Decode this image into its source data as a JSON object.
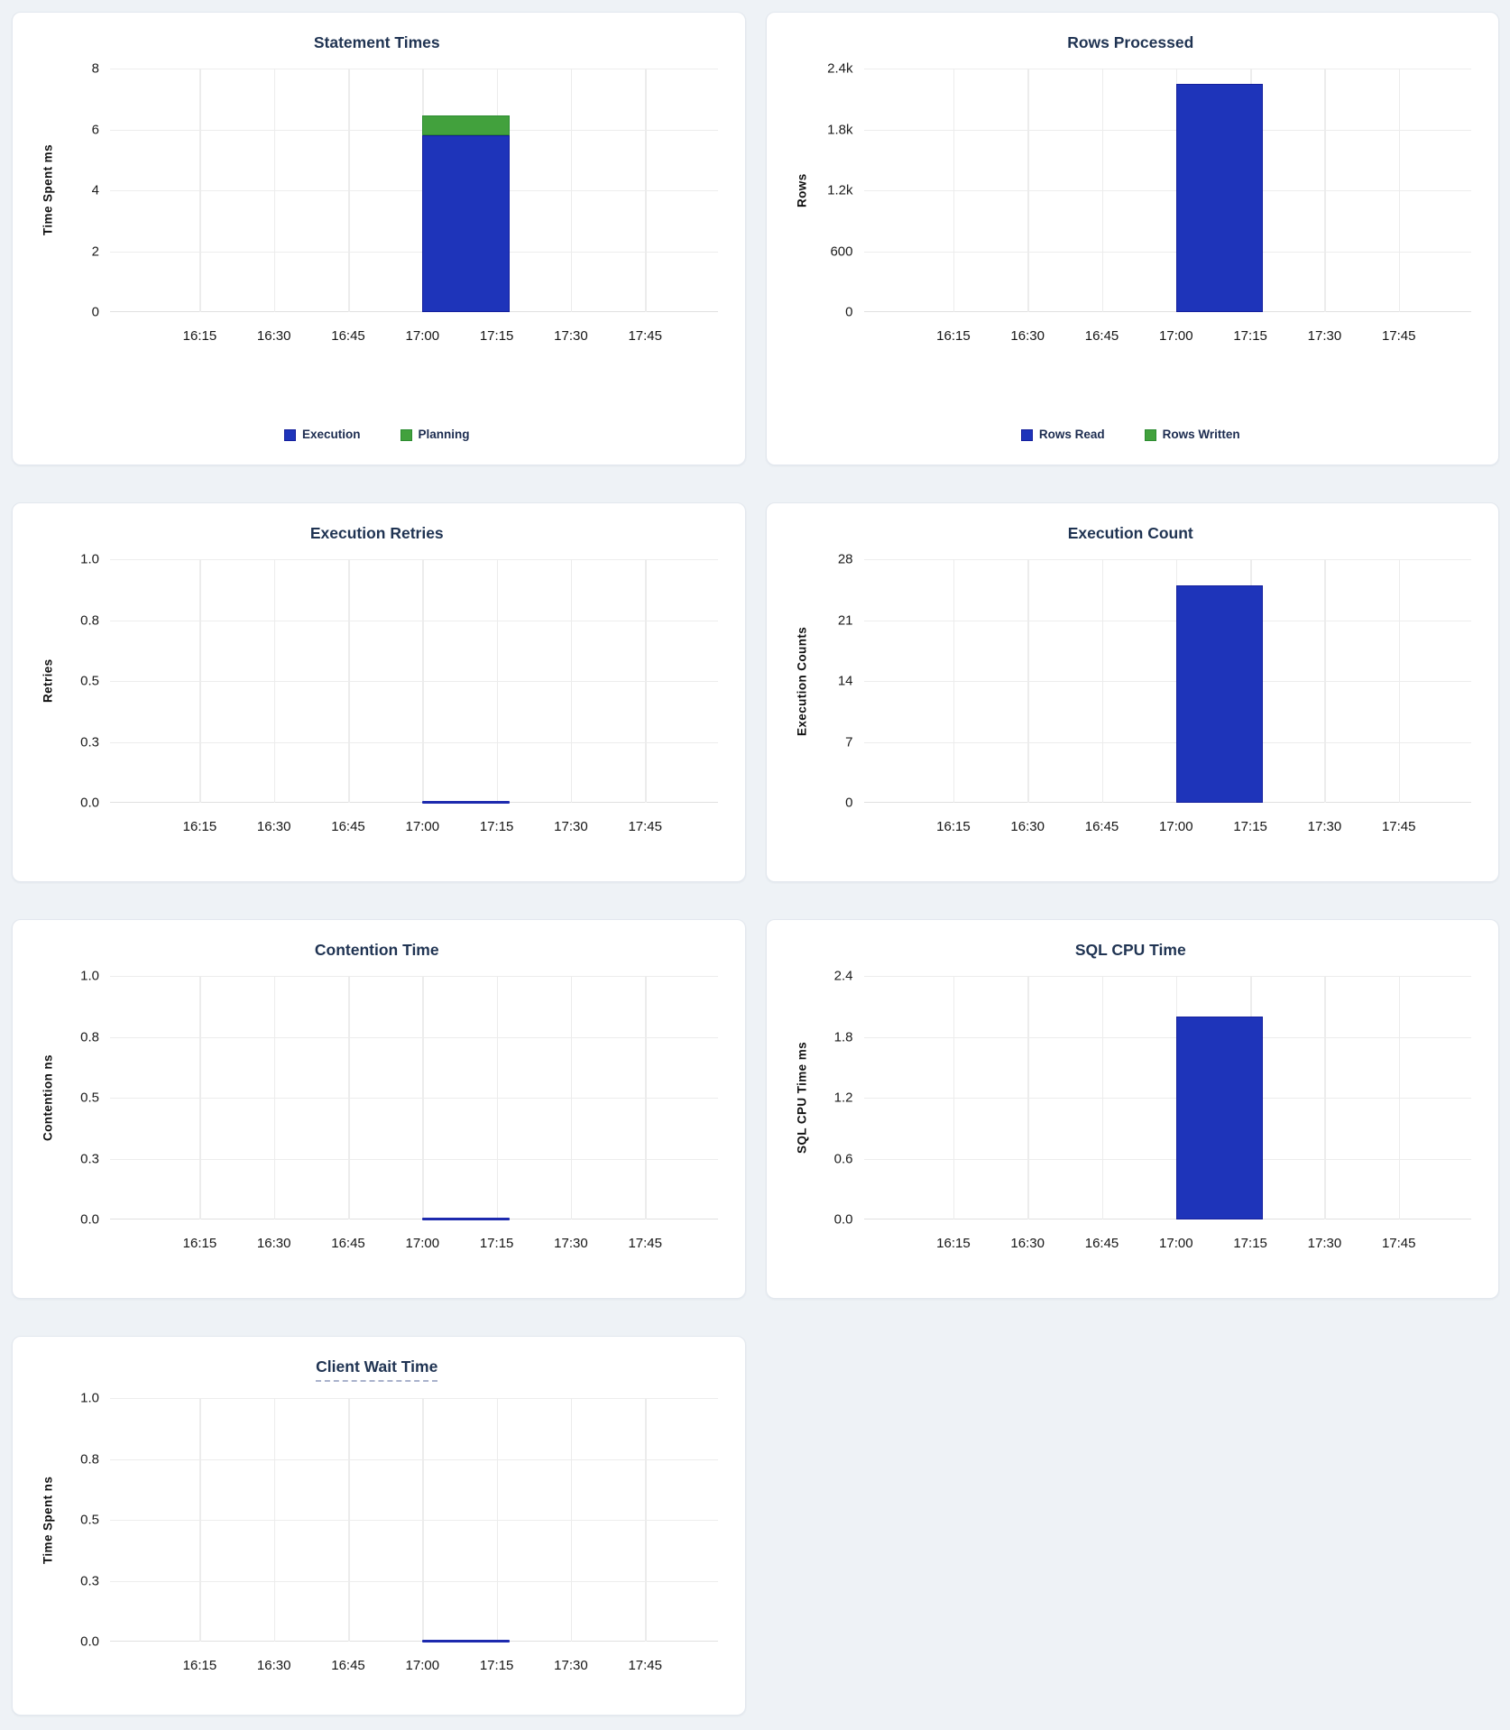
{
  "page": {
    "background_color": "#eef2f6",
    "card_background": "#ffffff",
    "card_border_color": "#e2e7ee"
  },
  "colors": {
    "title_text": "#1f3352",
    "legend_text": "#1c2c50",
    "axis_tick_text": "#1b1b1b",
    "axis_label_text": "#101010",
    "grid_line": "#ededed",
    "baseline": "#e0e0e0",
    "title_underline": "#a9b2cc",
    "blue": "#1e34ba",
    "blue_border": "#141f9c",
    "green": "#42a13d",
    "green_border": "#2c8c31",
    "line": "#1d2aae"
  },
  "x_axis": {
    "ticks": [
      "16:15",
      "16:30",
      "16:45",
      "17:00",
      "17:15",
      "17:30",
      "17:45"
    ],
    "first_tick_pct": 14.76,
    "tick_step_pct": 12.22,
    "bucket_left_pct": 51.4,
    "bucket_width_pct": 14.35
  },
  "chart_data": [
    {
      "type": "bar",
      "title": "Statement Times",
      "ylabel": "Time Spent ms",
      "ylim": [
        0,
        8
      ],
      "yticks": [
        "0",
        "2",
        "4",
        "6",
        "8"
      ],
      "x_bucket": {
        "start": "17:00",
        "end": "17:15"
      },
      "bars": [
        {
          "name": "Execution",
          "value": 5.8,
          "color": "blue"
        },
        {
          "name": "Planning",
          "value": 0.65,
          "color": "green"
        }
      ],
      "legend": [
        {
          "label": "Execution",
          "color": "blue"
        },
        {
          "label": "Planning",
          "color": "green"
        }
      ]
    },
    {
      "type": "bar",
      "title": "Rows Processed",
      "ylabel": "Rows",
      "ylim": [
        0,
        2400
      ],
      "yticks": [
        "0",
        "600",
        "1.2k",
        "1.8k",
        "2.4k"
      ],
      "x_bucket": {
        "start": "17:00",
        "end": "17:15"
      },
      "bars": [
        {
          "name": "Rows Read",
          "value": 2250,
          "color": "blue"
        },
        {
          "name": "Rows Written",
          "value": 0,
          "color": "green"
        }
      ],
      "legend": [
        {
          "label": "Rows Read",
          "color": "blue"
        },
        {
          "label": "Rows Written",
          "color": "green"
        }
      ]
    },
    {
      "type": "line",
      "title": "Execution Retries",
      "ylabel": "Retries",
      "ylim": [
        0,
        1
      ],
      "yticks": [
        "0.0",
        "0.3",
        "0.5",
        "0.8",
        "1.0"
      ],
      "x_bucket": {
        "start": "17:00",
        "end": "17:15"
      },
      "line": {
        "value": 0,
        "color": "line"
      },
      "legend": null
    },
    {
      "type": "bar",
      "title": "Execution Count",
      "ylabel": "Execution Counts",
      "ylim": [
        0,
        28
      ],
      "yticks": [
        "0",
        "7",
        "14",
        "21",
        "28"
      ],
      "x_bucket": {
        "start": "17:00",
        "end": "17:15"
      },
      "bars": [
        {
          "name": "Execution Count",
          "value": 25,
          "color": "blue"
        }
      ],
      "legend": null
    },
    {
      "type": "line",
      "title": "Contention Time",
      "ylabel": "Contention ns",
      "ylim": [
        0,
        1
      ],
      "yticks": [
        "0.0",
        "0.3",
        "0.5",
        "0.8",
        "1.0"
      ],
      "x_bucket": {
        "start": "17:00",
        "end": "17:15"
      },
      "line": {
        "value": 0,
        "color": "line"
      },
      "legend": null
    },
    {
      "type": "bar",
      "title": "SQL CPU Time",
      "ylabel": "SQL CPU Time ms",
      "ylim": [
        0,
        2.4
      ],
      "yticks": [
        "0.0",
        "0.6",
        "1.2",
        "1.8",
        "2.4"
      ],
      "x_bucket": {
        "start": "17:00",
        "end": "17:15"
      },
      "bars": [
        {
          "name": "SQL CPU Time",
          "value": 2.0,
          "color": "blue"
        }
      ],
      "legend": null
    },
    {
      "type": "line",
      "title": "Client Wait Time",
      "title_tooltip_underline": true,
      "ylabel": "Time Spent ns",
      "ylim": [
        0,
        1
      ],
      "yticks": [
        "0.0",
        "0.3",
        "0.5",
        "0.8",
        "1.0"
      ],
      "x_bucket": {
        "start": "17:00",
        "end": "17:15"
      },
      "line": {
        "value": 0,
        "color": "line"
      },
      "legend": null
    }
  ]
}
